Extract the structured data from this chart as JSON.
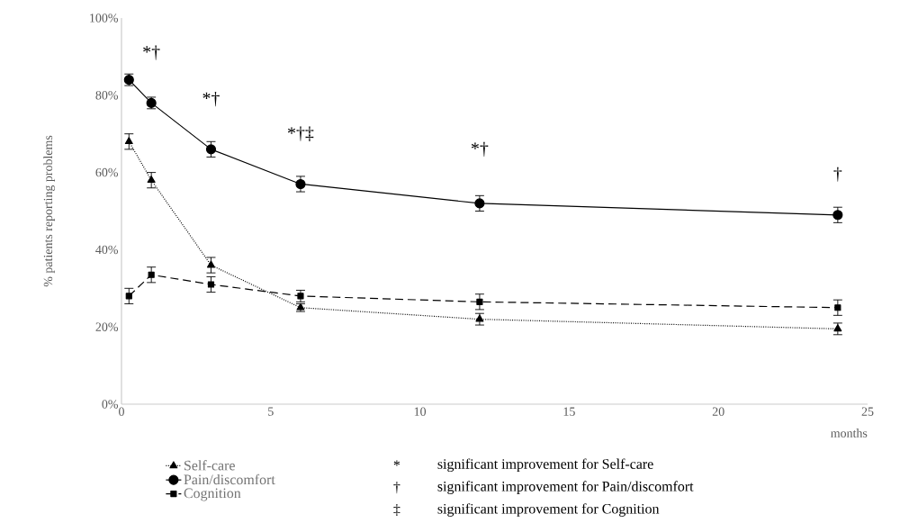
{
  "chart_data": {
    "type": "line",
    "xlabel": "months",
    "ylabel": "% patients reporting problems",
    "xlim": [
      0,
      25
    ],
    "xticks": [
      0,
      5,
      10,
      15,
      20,
      25
    ],
    "ylim": [
      0,
      100
    ],
    "yticks": [
      {
        "value": 0,
        "label": "0%"
      },
      {
        "value": 20,
        "label": "20%"
      },
      {
        "value": 40,
        "label": "40%"
      },
      {
        "value": 60,
        "label": "60%"
      },
      {
        "value": 80,
        "label": "80%"
      },
      {
        "value": 100,
        "label": "100%"
      }
    ],
    "grid": false,
    "legend": "bottom",
    "series": [
      {
        "name": "Self-care",
        "color": "#000000",
        "marker": "triangle",
        "line_style": "dotted",
        "x": [
          0.25,
          1,
          3,
          6,
          12,
          24
        ],
        "values": [
          68,
          58,
          36,
          25,
          22,
          19.5
        ],
        "errors": [
          2,
          2,
          2,
          1,
          1.5,
          1.5
        ]
      },
      {
        "name": "Pain/discomfort",
        "color": "#000000",
        "marker": "circle",
        "line_style": "solid",
        "x": [
          0.25,
          1,
          3,
          6,
          12,
          24
        ],
        "values": [
          84,
          78,
          66,
          57,
          52,
          49
        ],
        "errors": [
          1.5,
          1.5,
          2,
          2,
          2,
          2
        ]
      },
      {
        "name": "Cognition",
        "color": "#000000",
        "marker": "square",
        "line_style": "dashed",
        "x": [
          0.25,
          1,
          3,
          6,
          12,
          24
        ],
        "values": [
          28,
          33.5,
          31,
          28,
          26.5,
          25
        ],
        "errors": [
          2,
          2,
          2,
          1.5,
          2,
          2
        ]
      }
    ],
    "annotations": [
      "*†",
      "*†",
      "*†‡",
      "*†",
      "†",
      "*",
      "significant improvement for Self-care",
      "†",
      "significant improvement for Pain/discomfort",
      "‡",
      "significant improvement for Cognition"
    ]
  }
}
